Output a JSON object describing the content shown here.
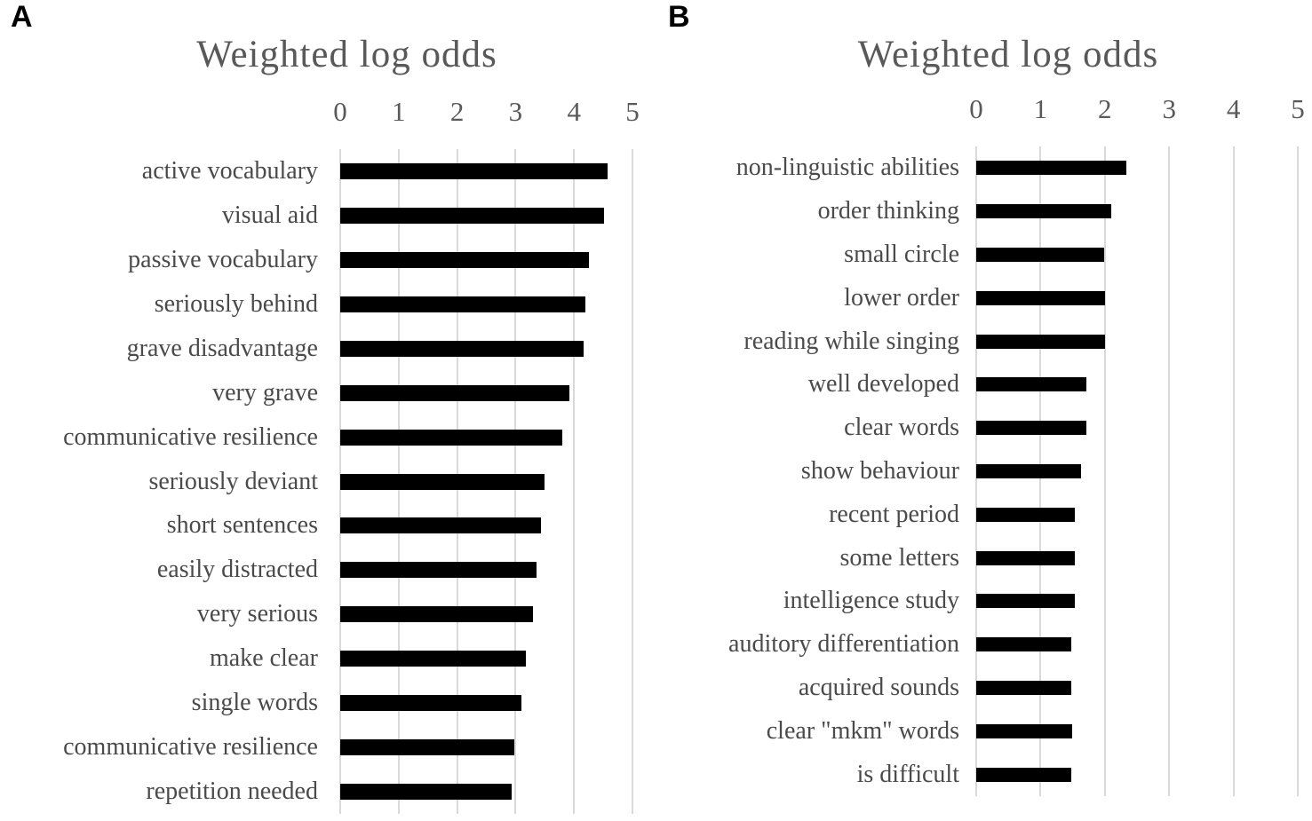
{
  "figure": {
    "background": "#ffffff",
    "panels": [
      {
        "label": "A",
        "title": "Weighted log odds"
      },
      {
        "label": "B",
        "title": "Weighted log odds"
      }
    ],
    "colors": {
      "bar": "#000000",
      "gridline": "#d9d9d9",
      "title_text": "#595959",
      "tick_text": "#595959",
      "category_label_text": "#4a4a4a"
    }
  },
  "chart_data": [
    {
      "type": "bar",
      "orientation": "horizontal",
      "panel": "A",
      "title": "Weighted log odds",
      "xlabel": "",
      "ylabel": "",
      "xlim": [
        0,
        5
      ],
      "xticks": [
        0,
        1,
        2,
        3,
        4,
        5
      ],
      "grid": true,
      "legend": false,
      "bar_color": "#000000",
      "categories": [
        "active vocabulary",
        "visual aid",
        "passive vocabulary",
        "seriously behind",
        "grave disadvantage",
        "very grave",
        "communicative resilience",
        "seriously deviant",
        "short sentences",
        "easily distracted",
        "very serious",
        "make clear",
        "single words",
        "communicative resilience",
        "repetition needed"
      ],
      "values": [
        4.57,
        4.52,
        4.25,
        4.2,
        4.16,
        3.92,
        3.8,
        3.5,
        3.44,
        3.36,
        3.3,
        3.18,
        3.1,
        2.98,
        2.94
      ]
    },
    {
      "type": "bar",
      "orientation": "horizontal",
      "panel": "B",
      "title": "Weighted log odds",
      "xlabel": "",
      "ylabel": "",
      "xlim": [
        0,
        5
      ],
      "xticks": [
        0,
        1,
        2,
        3,
        4,
        5
      ],
      "grid": true,
      "legend": false,
      "bar_color": "#000000",
      "categories": [
        "non-linguistic abilities",
        "order thinking",
        "small circle",
        "lower order",
        "reading while singing",
        "well developed",
        "clear words",
        "show behaviour",
        "recent period",
        "some letters",
        "intelligence study",
        "auditory differentiation",
        "acquired sounds",
        "clear \"mkm\" words",
        "is difficult"
      ],
      "values": [
        2.34,
        2.1,
        1.99,
        2.0,
        2.0,
        1.71,
        1.71,
        1.63,
        1.54,
        1.54,
        1.54,
        1.48,
        1.48,
        1.49,
        1.48
      ]
    }
  ]
}
